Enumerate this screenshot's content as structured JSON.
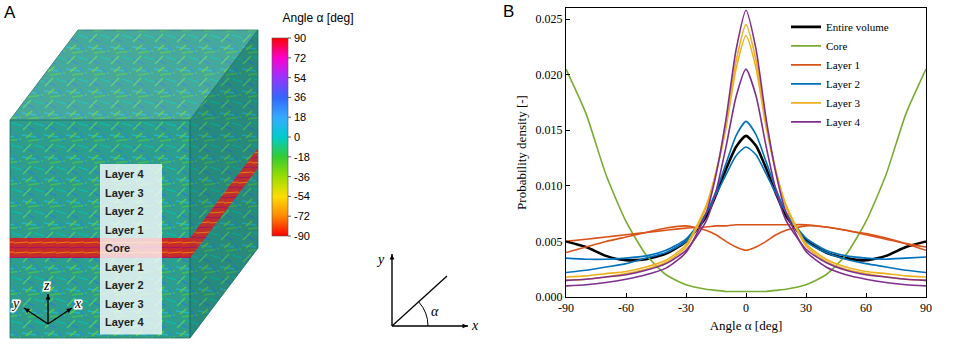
{
  "panel_a": {
    "label": "A",
    "layers": [
      "Layer 4",
      "Layer 3",
      "Layer 2",
      "Layer 1",
      "Core",
      "Layer 1",
      "Layer 2",
      "Layer 3",
      "Layer 4"
    ],
    "axes_labels": {
      "y": "y",
      "z": "z",
      "x": "x"
    },
    "colorbar": {
      "title": "Angle α [deg]",
      "range": [
        -90,
        90
      ],
      "ticks": [
        90,
        72,
        54,
        36,
        18,
        0,
        -18,
        -36,
        -54,
        -72,
        -90
      ],
      "colors": [
        "#ff0000",
        "#ff00cc",
        "#9933ff",
        "#3366ff",
        "#33aaff",
        "#00cccc",
        "#33cc33",
        "#99dd00",
        "#ffdd00",
        "#ff8800",
        "#ff0000"
      ]
    },
    "angle_sketch": {
      "y": "y",
      "x": "x",
      "angle": "α"
    }
  },
  "chart_data": {
    "type": "line",
    "panel_label": "B",
    "x_label": "Angle α [deg]",
    "y_label": "Probability density [-]",
    "x": [
      -90,
      -80,
      -70,
      -60,
      -50,
      -40,
      -30,
      -20,
      -15,
      -10,
      -5,
      0,
      5,
      10,
      15,
      20,
      30,
      40,
      50,
      60,
      70,
      80,
      90
    ],
    "xlim": [
      -90,
      90
    ],
    "xticks": [
      -90,
      -60,
      -30,
      0,
      30,
      60,
      90
    ],
    "ylim": [
      0,
      0.026
    ],
    "yticks": [
      {
        "value": 0,
        "label": "0.000"
      },
      {
        "value": 0.005,
        "label": "0.005"
      },
      {
        "value": 0.01,
        "label": "0.010"
      },
      {
        "value": 0.015,
        "label": "0.015"
      },
      {
        "value": 0.02,
        "label": "0.020"
      },
      {
        "value": 0.025,
        "label": "0.025"
      }
    ],
    "grid": false,
    "legend": "upper right",
    "series": [
      {
        "name": "Entire volume",
        "color": "#000000",
        "values": [
          0.005,
          0.0045,
          0.0037,
          0.0033,
          0.0034,
          0.0039,
          0.005,
          0.0072,
          0.0092,
          0.0115,
          0.0135,
          0.0145,
          0.0136,
          0.0116,
          0.0093,
          0.0073,
          0.0051,
          0.004,
          0.0035,
          0.0033,
          0.0037,
          0.0045,
          0.005
        ]
      },
      {
        "name": "Core",
        "color": "#77ac30",
        "values": [
          0.0205,
          0.0165,
          0.011,
          0.0068,
          0.0038,
          0.002,
          0.0011,
          0.0007,
          0.0006,
          0.0005,
          0.0005,
          0.0005,
          0.0005,
          0.0005,
          0.0006,
          0.0007,
          0.0011,
          0.002,
          0.0038,
          0.0068,
          0.011,
          0.0165,
          0.0205
        ]
      },
      {
        "name": "Layer 1",
        "color": "#d95319",
        "values": [
          0.004,
          0.0045,
          0.005,
          0.0054,
          0.0058,
          0.0062,
          0.0064,
          0.006,
          0.0056,
          0.005,
          0.0045,
          0.0042,
          0.0045,
          0.005,
          0.0056,
          0.006,
          0.0064,
          0.0063,
          0.006,
          0.0057,
          0.0053,
          0.0048,
          0.0042
        ]
      },
      {
        "name": "Layer 1",
        "color": "#d95319",
        "values": [
          0.005,
          0.0052,
          0.0054,
          0.0056,
          0.0058,
          0.006,
          0.0062,
          0.0063,
          0.0064,
          0.0064,
          0.0065,
          0.0065,
          0.0065,
          0.0065,
          0.0065,
          0.0065,
          0.0065,
          0.0063,
          0.006,
          0.0056,
          0.0052,
          0.0048,
          0.0045
        ]
      },
      {
        "name": "Layer 2",
        "color": "#0072bd",
        "values": [
          0.0022,
          0.0024,
          0.0027,
          0.003,
          0.0035,
          0.004,
          0.005,
          0.0075,
          0.0095,
          0.012,
          0.0145,
          0.0158,
          0.0146,
          0.0122,
          0.0097,
          0.0076,
          0.005,
          0.004,
          0.0034,
          0.003,
          0.0027,
          0.0024,
          0.0022
        ]
      },
      {
        "name": "Layer 2",
        "color": "#0072bd",
        "values": [
          0.0035,
          0.0034,
          0.0034,
          0.0035,
          0.0037,
          0.0042,
          0.0052,
          0.0075,
          0.0092,
          0.011,
          0.0127,
          0.0135,
          0.0128,
          0.0111,
          0.0093,
          0.0076,
          0.0053,
          0.0042,
          0.0037,
          0.0035,
          0.0034,
          0.0035,
          0.0036
        ]
      },
      {
        "name": "Layer 3",
        "color": "#edb120",
        "values": [
          0.0015,
          0.0016,
          0.0018,
          0.0021,
          0.0025,
          0.0031,
          0.0045,
          0.008,
          0.0112,
          0.0155,
          0.0212,
          0.0245,
          0.0213,
          0.0157,
          0.0113,
          0.0081,
          0.0046,
          0.0032,
          0.0025,
          0.0021,
          0.0018,
          0.0016,
          0.0015
        ]
      },
      {
        "name": "Layer 3",
        "color": "#edb120",
        "values": [
          0.0018,
          0.0019,
          0.0021,
          0.0023,
          0.0027,
          0.0033,
          0.0047,
          0.0082,
          0.0112,
          0.0152,
          0.0205,
          0.0235,
          0.0206,
          0.0153,
          0.0113,
          0.0083,
          0.0048,
          0.0034,
          0.0027,
          0.0023,
          0.0021,
          0.0019,
          0.0018
        ]
      },
      {
        "name": "Layer 4",
        "color": "#7e2f8e",
        "values": [
          0.001,
          0.0011,
          0.0013,
          0.0016,
          0.002,
          0.0026,
          0.004,
          0.0075,
          0.011,
          0.016,
          0.0222,
          0.0258,
          0.0223,
          0.0161,
          0.0111,
          0.0076,
          0.0041,
          0.0027,
          0.002,
          0.0016,
          0.0013,
          0.0011,
          0.001
        ]
      },
      {
        "name": "Layer 4",
        "color": "#7e2f8e",
        "values": [
          0.0015,
          0.0016,
          0.0018,
          0.002,
          0.0024,
          0.003,
          0.0042,
          0.0068,
          0.0095,
          0.0135,
          0.018,
          0.0205,
          0.0181,
          0.0136,
          0.0096,
          0.0069,
          0.0043,
          0.0031,
          0.0024,
          0.002,
          0.0018,
          0.0016,
          0.0015
        ]
      }
    ]
  }
}
